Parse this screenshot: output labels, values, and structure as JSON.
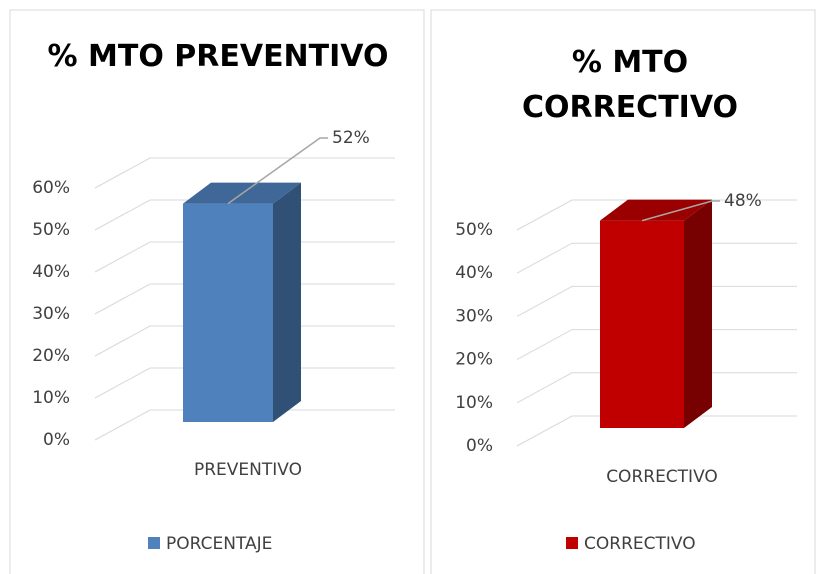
{
  "chart_data": [
    {
      "type": "bar3d",
      "title": "% MTO PREVENTIVO",
      "categories": [
        "PREVENTIVO"
      ],
      "series": [
        {
          "name": "PORCENTAJE",
          "color": "#4f81bd",
          "values": [
            52
          ],
          "value_labels": [
            "52%"
          ]
        }
      ],
      "ylim": [
        0,
        60
      ],
      "yticks": [
        {
          "value": 0,
          "label": "0%"
        },
        {
          "value": 10,
          "label": "10%"
        },
        {
          "value": 20,
          "label": "20%"
        },
        {
          "value": 30,
          "label": "30%"
        },
        {
          "value": 40,
          "label": "40%"
        },
        {
          "value": 50,
          "label": "50%"
        },
        {
          "value": 60,
          "label": "60%"
        }
      ],
      "grid": true,
      "legend": "bottom"
    },
    {
      "type": "bar3d",
      "title": "% MTO CORRECTIVO",
      "categories": [
        "CORRECTIVO"
      ],
      "series": [
        {
          "name": "CORRECTIVO",
          "color": "#c00000",
          "values": [
            48
          ],
          "value_labels": [
            "48%"
          ]
        }
      ],
      "ylim": [
        0,
        50
      ],
      "yticks": [
        {
          "value": 0,
          "label": "0%"
        },
        {
          "value": 10,
          "label": "10%"
        },
        {
          "value": 20,
          "label": "20%"
        },
        {
          "value": 30,
          "label": "30%"
        },
        {
          "value": 40,
          "label": "40%"
        },
        {
          "value": 50,
          "label": "50%"
        }
      ],
      "grid": true,
      "legend": "bottom"
    }
  ]
}
